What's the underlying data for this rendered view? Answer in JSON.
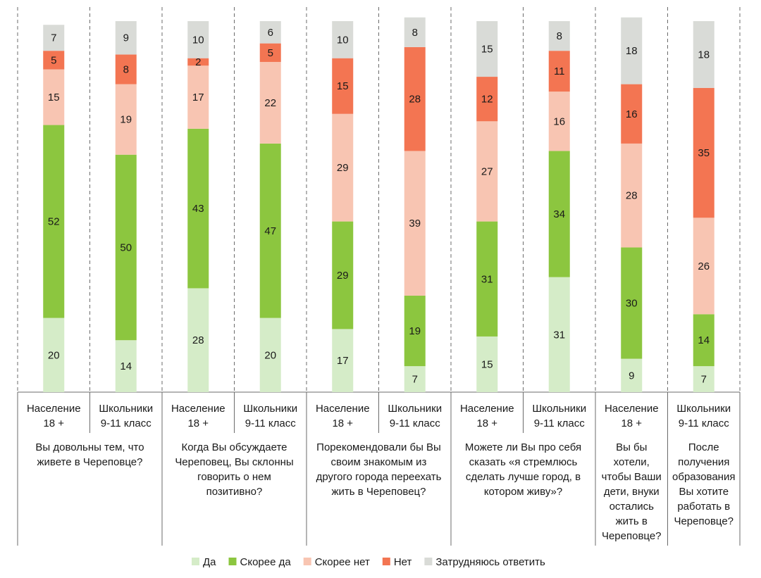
{
  "chart_data": {
    "type": "bar",
    "stacked": true,
    "percent": true,
    "title": "",
    "xlabel": "",
    "ylabel": "",
    "ylim": [
      0,
      100
    ],
    "grid": false,
    "legend_position": "bottom",
    "colors": {
      "Да": "#d5ecc8",
      "Скорее да": "#8cc63f",
      "Скорее нет": "#f8c5b2",
      "Нет": "#f37552",
      "Затрудняюсь ответить": "#d9dbd7"
    },
    "series_order": [
      "Да",
      "Скорее да",
      "Скорее нет",
      "Нет",
      "Затрудняюсь ответить"
    ],
    "groups": [
      {
        "question": [
          "Вы довольны тем, что",
          "живете в Череповце?"
        ],
        "bars": [
          {
            "category": [
              "Население",
              "18 +"
            ],
            "values": [
              20,
              52,
              15,
              5,
              7
            ]
          },
          {
            "category": [
              "Школьники",
              "9-11 класс"
            ],
            "values": [
              14,
              50,
              19,
              8,
              9
            ]
          }
        ]
      },
      {
        "question": [
          "Когда Вы обсуждаете",
          "Череповец, Вы склонны",
          "говорить о нем",
          "позитивно?"
        ],
        "bars": [
          {
            "category": [
              "Население",
              "18 +"
            ],
            "values": [
              28,
              43,
              17,
              2,
              10
            ]
          },
          {
            "category": [
              "Школьники",
              "9-11 класс"
            ],
            "values": [
              20,
              47,
              22,
              5,
              6
            ]
          }
        ]
      },
      {
        "question": [
          "Порекомендовали бы Вы",
          "своим знакомым из",
          "другого города переехать",
          "жить в Череповец?"
        ],
        "bars": [
          {
            "category": [
              "Население",
              "18 +"
            ],
            "values": [
              17,
              29,
              29,
              15,
              10
            ]
          },
          {
            "category": [
              "Школьники",
              "9-11 класс"
            ],
            "values": [
              7,
              19,
              39,
              28,
              8
            ]
          }
        ]
      },
      {
        "question": [
          "Можете ли Вы про себя",
          "сказать «я стремлюсь",
          "сделать лучше город, в",
          "котором живу»?"
        ],
        "bars": [
          {
            "category": [
              "Население",
              "18 +"
            ],
            "values": [
              15,
              31,
              27,
              12,
              15
            ]
          },
          {
            "category": [
              "Школьники",
              "9-11 класс"
            ],
            "values": [
              31,
              34,
              16,
              11,
              8
            ]
          }
        ]
      },
      {
        "question": [
          "Вы бы",
          "хотели,",
          "чтобы Ваши",
          "дети, внуки",
          "остались",
          "жить в",
          "Череповце?"
        ],
        "bars": [
          {
            "category": [
              "Население",
              "18 +"
            ],
            "values": [
              9,
              30,
              28,
              16,
              18
            ]
          }
        ]
      },
      {
        "question": [
          "После",
          "получения",
          "образования",
          "Вы хотите",
          "работать в",
          "Череповце?"
        ],
        "bars": [
          {
            "category": [
              "Школьники",
              "9-11 класс"
            ],
            "values": [
              7,
              14,
              26,
              35,
              18
            ]
          }
        ]
      }
    ]
  }
}
